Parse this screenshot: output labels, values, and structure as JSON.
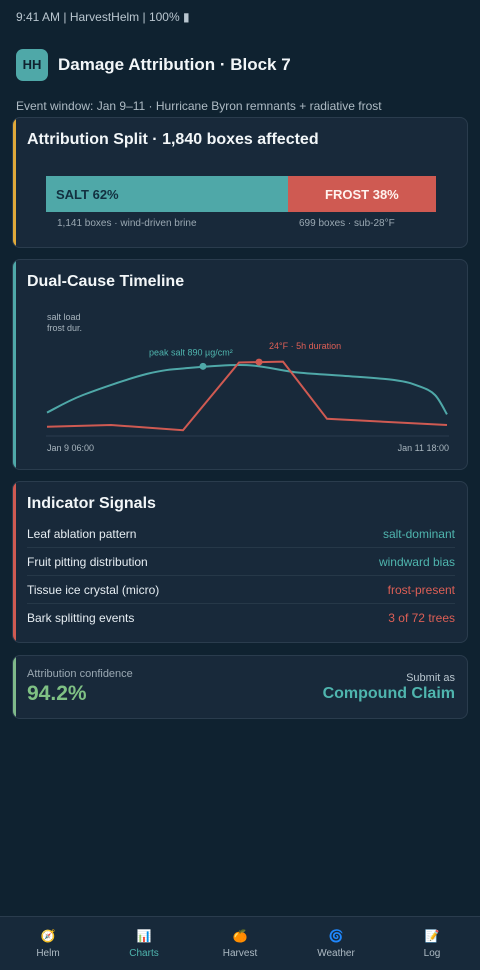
{
  "status_bar": {
    "text": "9:41 AM | HarvestHelm | 100% ▮"
  },
  "header": {
    "logo": "HH",
    "title": "Damage Attribution · Block 7"
  },
  "event_window": "Event window: Jan 9–11 · Hurricane Byron remnants + radiative frost",
  "split_card": {
    "title": "Attribution Split · 1,840 boxes affected",
    "salt": {
      "label": "SALT 62%",
      "share": 0.62,
      "note": "1,141 boxes · wind-driven brine",
      "color": "#4fa8a8"
    },
    "frost": {
      "label": "FROST 38%",
      "share": 0.38,
      "note": "699 boxes · sub-28°F",
      "color": "#cf5a52"
    }
  },
  "timeline_card": {
    "title": "Dual-Cause Timeline",
    "legend": [
      "salt load",
      "frost dur."
    ],
    "annotations": {
      "salt_peak": "peak salt 890 µg/cm²",
      "frost_peak": "24°F · 5h duration"
    },
    "x_start": "Jan 9 06:00",
    "x_end": "Jan 11 18:00"
  },
  "chart_data": {
    "type": "line",
    "x_range": [
      "Jan 9 06:00",
      "Jan 11 18:00"
    ],
    "series": [
      {
        "name": "salt load",
        "color": "#4fa8a8",
        "points": [
          [
            0,
            0.22
          ],
          [
            0.09,
            0.42
          ],
          [
            0.25,
            0.66
          ],
          [
            0.36,
            0.73
          ],
          [
            0.5,
            0.76
          ],
          [
            0.62,
            0.68
          ],
          [
            0.74,
            0.64
          ],
          [
            0.87,
            0.59
          ],
          [
            0.93,
            0.52
          ],
          [
            0.97,
            0.42
          ],
          [
            1.0,
            0.2
          ]
        ]
      },
      {
        "name": "frost dur.",
        "color": "#cf5a52",
        "points": [
          [
            0,
            0.06
          ],
          [
            0.16,
            0.08
          ],
          [
            0.34,
            0.02
          ],
          [
            0.48,
            0.79
          ],
          [
            0.59,
            0.8
          ],
          [
            0.7,
            0.15
          ],
          [
            1.0,
            0.08
          ]
        ]
      }
    ],
    "markers": [
      {
        "series": "salt load",
        "at": 0.39,
        "label": "peak salt 890 µg/cm²"
      },
      {
        "series": "frost dur.",
        "at": 0.53,
        "label": "24°F · 5h duration"
      }
    ]
  },
  "signals_card": {
    "title": "Indicator Signals",
    "rows": [
      {
        "label": "Leaf ablation pattern",
        "value": "salt-dominant",
        "color": "#4fb5ae"
      },
      {
        "label": "Fruit pitting distribution",
        "value": "windward bias",
        "color": "#4fb5ae"
      },
      {
        "label": "Tissue ice crystal (micro)",
        "value": "frost-present",
        "color": "#dd5f56"
      },
      {
        "label": "Bark splitting events",
        "value": "3 of 72 trees",
        "color": "#dd5f56"
      }
    ]
  },
  "confidence_card": {
    "label": "Attribution confidence",
    "value": "94.2%",
    "submit_label": "Submit as",
    "submit_value": "Compound Claim"
  },
  "nav": [
    {
      "label": "Helm",
      "icon": "compass-icon",
      "glyph": "🧭",
      "active": false
    },
    {
      "label": "Charts",
      "icon": "chart-icon",
      "glyph": "📊",
      "active": true
    },
    {
      "label": "Harvest",
      "icon": "orange-icon",
      "glyph": "🍊",
      "active": false
    },
    {
      "label": "Weather",
      "icon": "cyclone-icon",
      "glyph": "🌀",
      "active": false
    },
    {
      "label": "Log",
      "icon": "memo-icon",
      "glyph": "📝",
      "active": false
    }
  ]
}
